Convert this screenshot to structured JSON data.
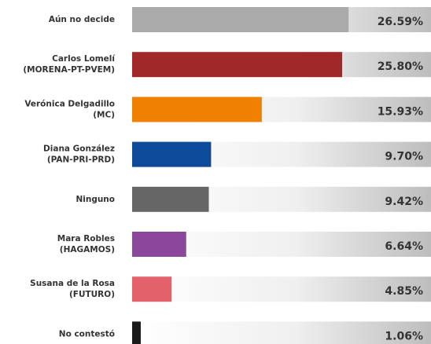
{
  "chart_data": {
    "type": "bar",
    "orientation": "horizontal",
    "categories": [
      [
        "Aún no decide"
      ],
      [
        "Carlos Lomelí",
        "(MORENA-PT-PVEM)"
      ],
      [
        "Verónica Delgadillo",
        "(MC)"
      ],
      [
        "Diana González",
        "(PAN-PRI-PRD)"
      ],
      [
        "Ninguno"
      ],
      [
        "Mara Robles",
        "(HAGAMOS)"
      ],
      [
        "Susana de la Rosa",
        "(FUTURO)"
      ],
      [
        "No contestó"
      ]
    ],
    "values": [
      26.59,
      25.8,
      15.93,
      9.7,
      9.42,
      6.64,
      4.85,
      1.06
    ],
    "value_labels": [
      "26.59%",
      "25.80%",
      "15.93%",
      "9.70%",
      "9.42%",
      "6.64%",
      "4.85%",
      "1.06%"
    ],
    "colors": [
      "#aaaaaa",
      "#a02828",
      "#f08000",
      "#0e4a9a",
      "#666666",
      "#8b479b",
      "#e3616b",
      "#1a1a1a"
    ]
  }
}
